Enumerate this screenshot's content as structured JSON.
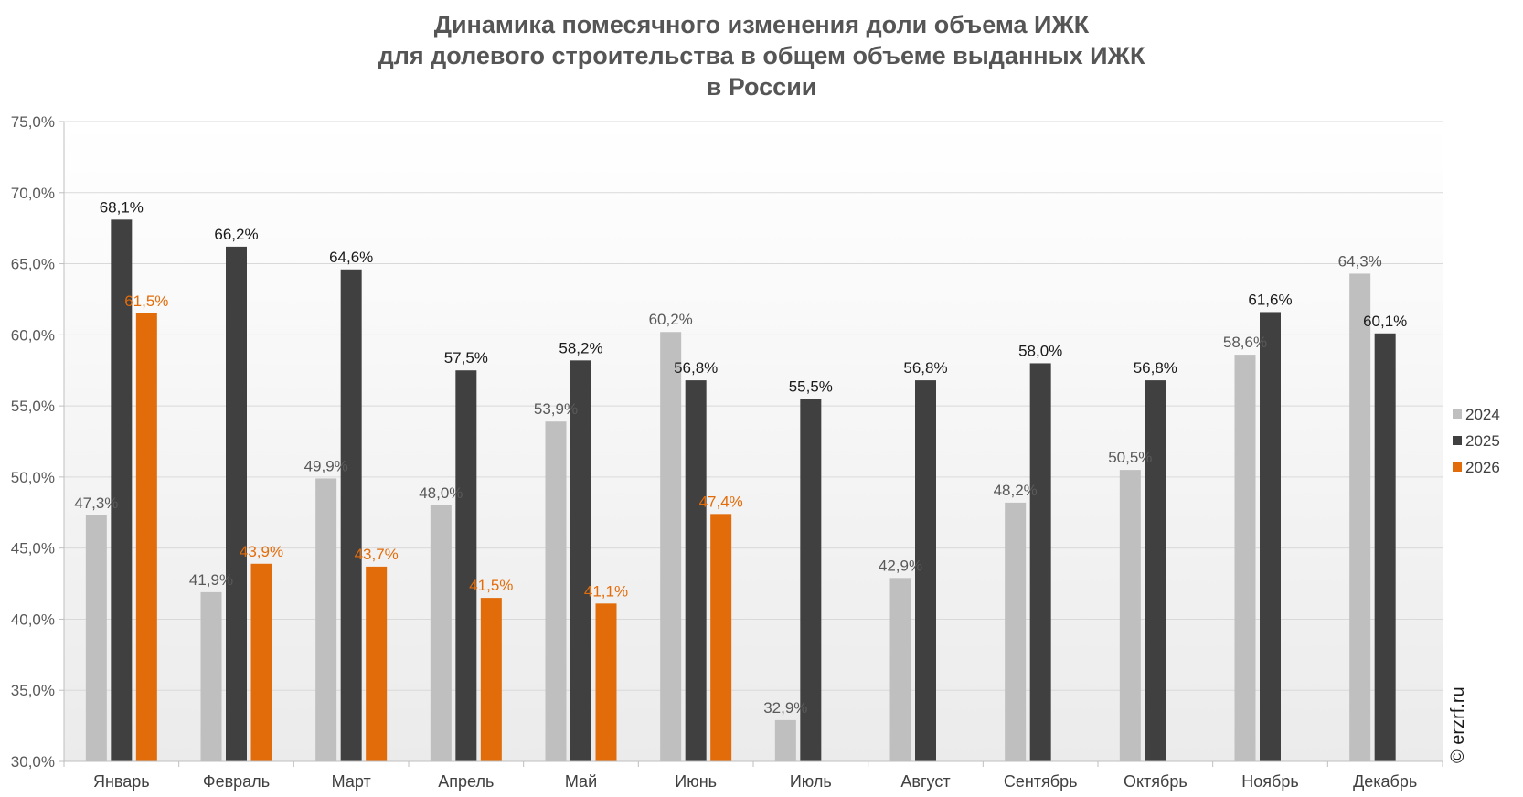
{
  "chart_data": {
    "type": "bar",
    "title_lines": [
      "Динамика помесячного изменения доли объема ИЖК",
      "для долевого строительства в общем объеме выданных ИЖК",
      "в России"
    ],
    "categories": [
      "Январь",
      "Февраль",
      "Март",
      "Апрель",
      "Май",
      "Июнь",
      "Июль",
      "Август",
      "Сентябрь",
      "Октябрь",
      "Ноябрь",
      "Декабрь"
    ],
    "series": [
      {
        "name": "2024",
        "color": "#bfbfbf",
        "label_color": "#595959",
        "values": [
          47.3,
          41.9,
          49.9,
          48.0,
          53.9,
          60.2,
          32.9,
          42.9,
          48.2,
          50.5,
          58.6,
          64.3
        ],
        "labels": [
          "47,3%",
          "41,9%",
          "49,9%",
          "48,0%",
          "53,9%",
          "60,2%",
          "32,9%",
          "42,9%",
          "48,2%",
          "50,5%",
          "58,6%",
          "64,3%"
        ]
      },
      {
        "name": "2025",
        "color": "#404040",
        "label_color": "#1a1a1a",
        "values": [
          68.1,
          66.2,
          64.6,
          57.5,
          58.2,
          56.8,
          55.5,
          56.8,
          58.0,
          56.8,
          61.6,
          60.1
        ],
        "labels": [
          "68,1%",
          "66,2%",
          "64,6%",
          "57,5%",
          "58,2%",
          "56,8%",
          "55,5%",
          "56,8%",
          "58,0%",
          "56,8%",
          "61,6%",
          "60,1%"
        ]
      },
      {
        "name": "2026",
        "color": "#e36c0a",
        "label_color": "#e36c0a",
        "values": [
          61.5,
          43.9,
          43.7,
          41.5,
          41.1,
          47.4,
          null,
          null,
          null,
          null,
          null,
          null
        ],
        "labels": [
          "61,5%",
          "43,9%",
          "43,7%",
          "41,5%",
          "41,1%",
          "47,4%",
          null,
          null,
          null,
          null,
          null,
          null
        ]
      }
    ],
    "ylim": [
      30,
      75
    ],
    "yticks": [
      30,
      35,
      40,
      45,
      50,
      55,
      60,
      65,
      70,
      75
    ],
    "ytick_labels": [
      "30,0%",
      "35,0%",
      "40,0%",
      "45,0%",
      "50,0%",
      "55,0%",
      "60,0%",
      "65,0%",
      "70,0%",
      "75,0%"
    ],
    "grid": true,
    "legend_position": "right",
    "background_gradient": [
      "#ffffff",
      "#ebebeb"
    ]
  },
  "watermark": "© erzrf.ru"
}
